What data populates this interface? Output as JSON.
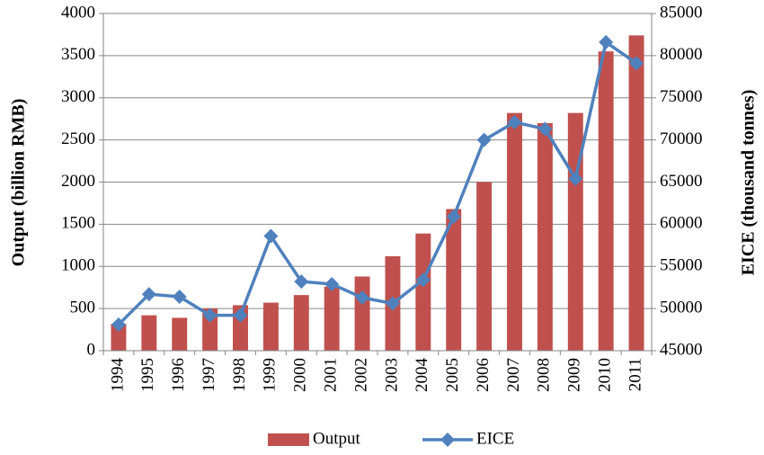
{
  "chart_data": {
    "type": "bar_line",
    "categories": [
      "1994",
      "1995",
      "1996",
      "1997",
      "1998",
      "1999",
      "2000",
      "2001",
      "2002",
      "2003",
      "2004",
      "2005",
      "2006",
      "2007",
      "2008",
      "2009",
      "2010",
      "2011"
    ],
    "series": [
      {
        "name": "Output",
        "type": "bar",
        "color": "#c0504d",
        "axis": "y",
        "values": [
          320,
          420,
          390,
          500,
          540,
          570,
          660,
          760,
          880,
          1120,
          1390,
          1680,
          2000,
          2820,
          2700,
          2820,
          3550,
          3740
        ]
      },
      {
        "name": "EICE",
        "type": "line",
        "color": "#4f81bd",
        "axis": "y2",
        "values": [
          48100,
          51700,
          51400,
          49200,
          49200,
          58600,
          53200,
          52900,
          51300,
          50600,
          53400,
          60900,
          70000,
          72100,
          71300,
          65400,
          81600,
          79100
        ]
      }
    ],
    "ylabel": "Output (billion RMB)",
    "y2label": "EICE (thousand tonnes)",
    "ylim": [
      0,
      4000
    ],
    "yticks": [
      0,
      500,
      1000,
      1500,
      2000,
      2500,
      3000,
      3500,
      4000
    ],
    "y2lim": [
      45000,
      85000
    ],
    "y2ticks": [
      45000,
      50000,
      55000,
      60000,
      65000,
      70000,
      75000,
      80000,
      85000
    ],
    "grid": true,
    "legend": "bottom"
  }
}
